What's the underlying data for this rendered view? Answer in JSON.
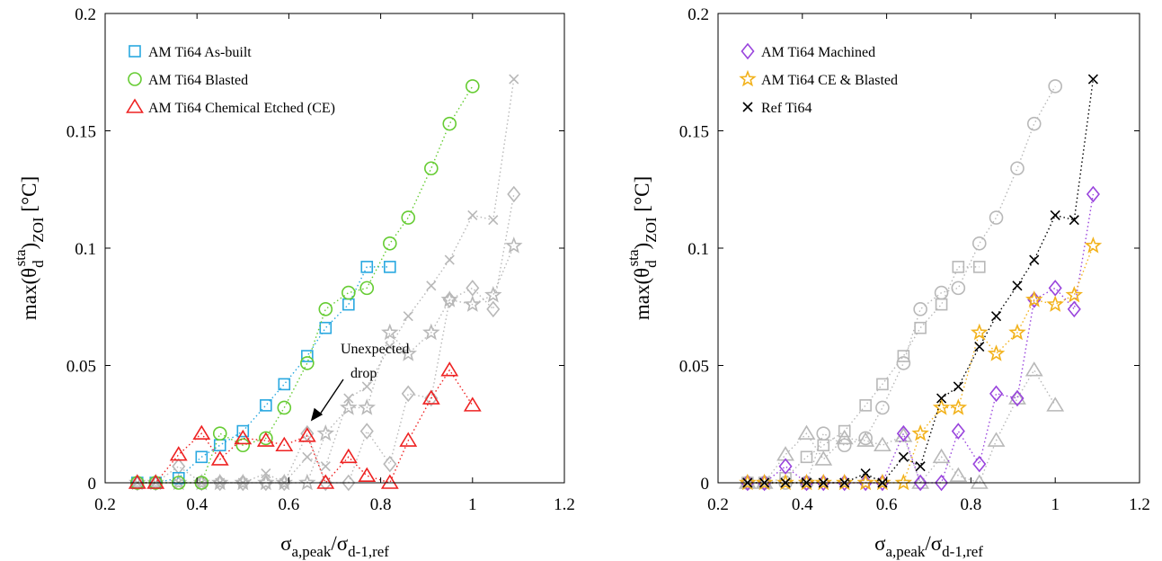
{
  "chart_data": [
    {
      "type": "line",
      "xlim": [
        0.2,
        1.2
      ],
      "ylim": [
        0,
        0.2
      ],
      "xticks": [
        "0.2",
        "0.4",
        "0.6",
        "0.8",
        "1",
        "1.2"
      ],
      "yticks": [
        "0",
        "0.05",
        "0.1",
        "0.15",
        "0.2"
      ],
      "xlabel": {
        "main": "σ",
        "sub1": "a,peak",
        "mid": "/σ",
        "sub2": "d-1,ref"
      },
      "ylabel": {
        "p1": "max(θ",
        "sub": "d",
        "sup": "sta",
        "p2": ")",
        "sub2": "ZOI",
        "p3": " [°C]"
      },
      "legend_position": "top-left",
      "annotation": {
        "line1": "Unexpected",
        "line2": "drop",
        "arrow_tip": [
          0.64,
          0.027
        ]
      },
      "series": [
        {
          "name": "AM Ti64 As-built",
          "color": "#29A8E0",
          "marker": "square",
          "highlight": true,
          "x": [
            0.27,
            0.31,
            0.36,
            0.41,
            0.45,
            0.5,
            0.55,
            0.59,
            0.64,
            0.68,
            0.73,
            0.77,
            0.82
          ],
          "y": [
            0,
            0,
            0.002,
            0.011,
            0.016,
            0.022,
            0.033,
            0.042,
            0.054,
            0.066,
            0.076,
            0.092,
            0.092
          ]
        },
        {
          "name": "AM Ti64 Blasted",
          "color": "#66CC33",
          "marker": "circle",
          "highlight": true,
          "x": [
            0.27,
            0.31,
            0.36,
            0.41,
            0.45,
            0.5,
            0.55,
            0.59,
            0.64,
            0.68,
            0.73,
            0.77,
            0.82,
            0.86,
            0.91,
            0.95,
            1.0
          ],
          "y": [
            0,
            0,
            0,
            0,
            0.021,
            0.016,
            0.019,
            0.032,
            0.051,
            0.074,
            0.081,
            0.083,
            0.102,
            0.113,
            0.134,
            0.153,
            0.169
          ]
        },
        {
          "name": "AM Ti64 Chemical Etched (CE)",
          "color": "#EE2222",
          "marker": "triangle",
          "highlight": true,
          "x": [
            0.27,
            0.31,
            0.36,
            0.41,
            0.45,
            0.5,
            0.55,
            0.59,
            0.64,
            0.68,
            0.73,
            0.77,
            0.82,
            0.86,
            0.91,
            0.95,
            1.0
          ],
          "y": [
            0,
            0,
            0.012,
            0.021,
            0.01,
            0.019,
            0.018,
            0.016,
            0.02,
            0,
            0.011,
            0.003,
            0,
            0.018,
            0.036,
            0.048,
            0.033
          ]
        },
        {
          "name": "AM Ti64 Machined",
          "color": "#9944DD",
          "marker": "diamond",
          "highlight": false,
          "x": [
            0.27,
            0.31,
            0.36,
            0.41,
            0.45,
            0.5,
            0.55,
            0.59,
            0.64,
            0.68,
            0.73,
            0.77,
            0.82,
            0.86,
            0.91,
            0.95,
            1.0,
            1.045,
            1.09
          ],
          "y": [
            0,
            0,
            0.007,
            0,
            0,
            0,
            0,
            0,
            0.021,
            0,
            0,
            0.022,
            0.008,
            0.038,
            0.036,
            0.078,
            0.083,
            0.074,
            0.123
          ]
        },
        {
          "name": "AM Ti64 CE & Blasted",
          "color": "#F2B21C",
          "marker": "star",
          "highlight": false,
          "x": [
            0.27,
            0.31,
            0.36,
            0.41,
            0.45,
            0.5,
            0.55,
            0.59,
            0.64,
            0.68,
            0.73,
            0.77,
            0.82,
            0.86,
            0.91,
            0.95,
            1.0,
            1.045,
            1.09
          ],
          "y": [
            0,
            0,
            0,
            0,
            0,
            0,
            0,
            0,
            0,
            0.021,
            0.032,
            0.032,
            0.064,
            0.055,
            0.064,
            0.078,
            0.076,
            0.08,
            0.101
          ]
        },
        {
          "name": "Ref Ti64",
          "color": "#000000",
          "marker": "x",
          "highlight": false,
          "x": [
            0.27,
            0.31,
            0.36,
            0.41,
            0.45,
            0.5,
            0.55,
            0.59,
            0.64,
            0.68,
            0.73,
            0.77,
            0.82,
            0.86,
            0.91,
            0.95,
            1.0,
            1.045,
            1.09
          ],
          "y": [
            0,
            0,
            0,
            0,
            0,
            0,
            0.004,
            0,
            0.011,
            0.007,
            0.036,
            0.041,
            0.058,
            0.071,
            0.084,
            0.095,
            0.114,
            0.112,
            0.172
          ]
        }
      ]
    },
    {
      "type": "line",
      "xlim": [
        0.2,
        1.2
      ],
      "ylim": [
        0,
        0.2
      ],
      "xticks": [
        "0.2",
        "0.4",
        "0.6",
        "0.8",
        "1",
        "1.2"
      ],
      "yticks": [
        "0",
        "0.05",
        "0.1",
        "0.15",
        "0.2"
      ],
      "xlabel": {
        "main": "σ",
        "sub1": "a,peak",
        "mid": "/σ",
        "sub2": "d-1,ref"
      },
      "ylabel": {
        "p1": "max(θ",
        "sub": "d",
        "sup": "sta",
        "p2": ")",
        "sub2": "ZOI",
        "p3": " [°C]"
      },
      "legend_position": "top-left",
      "series": [
        {
          "name": "AM Ti64 Machined",
          "color": "#9944DD",
          "marker": "diamond",
          "highlight": true,
          "x": [
            0.27,
            0.31,
            0.36,
            0.41,
            0.45,
            0.5,
            0.55,
            0.59,
            0.64,
            0.68,
            0.73,
            0.77,
            0.82,
            0.86,
            0.91,
            0.95,
            1.0,
            1.045,
            1.09
          ],
          "y": [
            0,
            0,
            0.007,
            0,
            0,
            0,
            0,
            0,
            0.021,
            0,
            0,
            0.022,
            0.008,
            0.038,
            0.036,
            0.078,
            0.083,
            0.074,
            0.123
          ]
        },
        {
          "name": "AM Ti64 CE & Blasted",
          "color": "#F2B21C",
          "marker": "star",
          "highlight": true,
          "x": [
            0.27,
            0.31,
            0.36,
            0.41,
            0.45,
            0.5,
            0.55,
            0.59,
            0.64,
            0.68,
            0.73,
            0.77,
            0.82,
            0.86,
            0.91,
            0.95,
            1.0,
            1.045,
            1.09
          ],
          "y": [
            0,
            0,
            0,
            0,
            0,
            0,
            0,
            0,
            0,
            0.021,
            0.032,
            0.032,
            0.064,
            0.055,
            0.064,
            0.078,
            0.076,
            0.08,
            0.101
          ]
        },
        {
          "name": "Ref Ti64",
          "color": "#000000",
          "marker": "x",
          "highlight": true,
          "x": [
            0.27,
            0.31,
            0.36,
            0.41,
            0.45,
            0.5,
            0.55,
            0.59,
            0.64,
            0.68,
            0.73,
            0.77,
            0.82,
            0.86,
            0.91,
            0.95,
            1.0,
            1.045,
            1.09
          ],
          "y": [
            0,
            0,
            0,
            0,
            0,
            0,
            0.004,
            0,
            0.011,
            0.007,
            0.036,
            0.041,
            0.058,
            0.071,
            0.084,
            0.095,
            0.114,
            0.112,
            0.172
          ]
        },
        {
          "name": "AM Ti64 As-built",
          "color": "#29A8E0",
          "marker": "square",
          "highlight": false,
          "x": [
            0.27,
            0.31,
            0.36,
            0.41,
            0.45,
            0.5,
            0.55,
            0.59,
            0.64,
            0.68,
            0.73,
            0.77,
            0.82
          ],
          "y": [
            0,
            0,
            0.002,
            0.011,
            0.016,
            0.022,
            0.033,
            0.042,
            0.054,
            0.066,
            0.076,
            0.092,
            0.092
          ]
        },
        {
          "name": "AM Ti64 Blasted",
          "color": "#66CC33",
          "marker": "circle",
          "highlight": false,
          "x": [
            0.27,
            0.31,
            0.36,
            0.41,
            0.45,
            0.5,
            0.55,
            0.59,
            0.64,
            0.68,
            0.73,
            0.77,
            0.82,
            0.86,
            0.91,
            0.95,
            1.0
          ],
          "y": [
            0,
            0,
            0,
            0,
            0.021,
            0.016,
            0.019,
            0.032,
            0.051,
            0.074,
            0.081,
            0.083,
            0.102,
            0.113,
            0.134,
            0.153,
            0.169
          ]
        },
        {
          "name": "AM Ti64 Chemical Etched (CE)",
          "color": "#EE2222",
          "marker": "triangle",
          "highlight": false,
          "x": [
            0.27,
            0.31,
            0.36,
            0.41,
            0.45,
            0.5,
            0.55,
            0.59,
            0.64,
            0.68,
            0.73,
            0.77,
            0.82,
            0.86,
            0.91,
            0.95,
            1.0
          ],
          "y": [
            0,
            0,
            0.012,
            0.021,
            0.01,
            0.019,
            0.018,
            0.016,
            0.02,
            0,
            0.011,
            0.003,
            0,
            0.018,
            0.036,
            0.048,
            0.033
          ]
        }
      ],
      "gray_color": "#B8B8B8"
    }
  ]
}
